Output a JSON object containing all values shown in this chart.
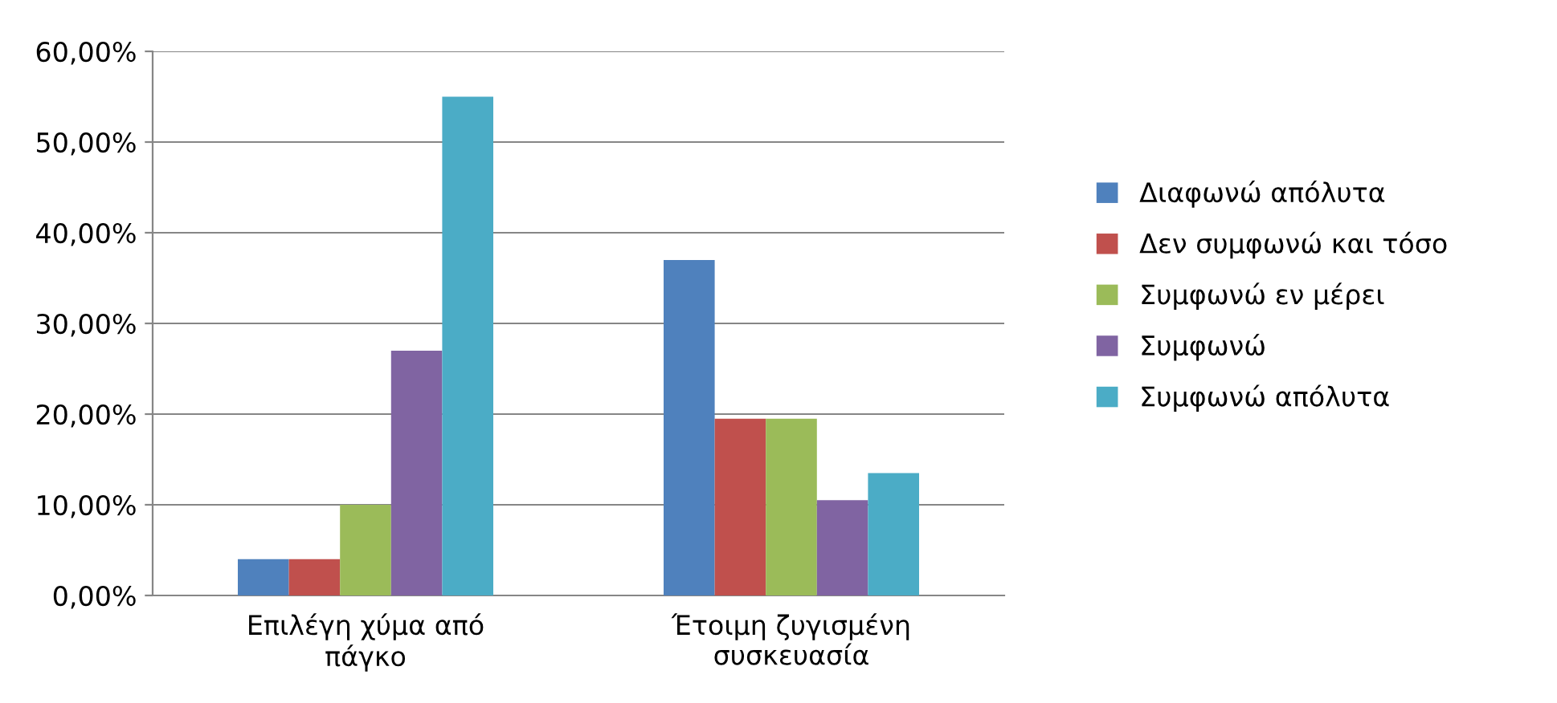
{
  "chart_data": {
    "type": "bar",
    "categories": [
      "Επιλέγη χύμα από\nπάγκο",
      "Έτοιμη ζυγισμένη\nσυσκευασία"
    ],
    "series": [
      {
        "name": "Διαφωνώ απόλυτα",
        "color": "#4f81bd",
        "values": [
          4,
          37
        ]
      },
      {
        "name": "Δεν συμφωνώ και τόσο",
        "color": "#c0504d",
        "values": [
          4,
          19.5
        ]
      },
      {
        "name": "Συμφωνώ εν μέρει",
        "color": "#9bbb59",
        "values": [
          10,
          19.5
        ]
      },
      {
        "name": "Συμφωνώ",
        "color": "#8064a2",
        "values": [
          27,
          10.5
        ]
      },
      {
        "name": "Συμφωνώ απόλυτα",
        "color": "#4bacc6",
        "values": [
          55,
          13.5
        ]
      }
    ],
    "ylim": [
      0,
      60
    ],
    "yticks": [
      {
        "value": 0,
        "label": "0,00%"
      },
      {
        "value": 10,
        "label": "10,00%"
      },
      {
        "value": 20,
        "label": "20,00%"
      },
      {
        "value": 30,
        "label": "30,00%"
      },
      {
        "value": 40,
        "label": "40,00%"
      },
      {
        "value": 50,
        "label": "50,00%"
      },
      {
        "value": 60,
        "label": "60,00%"
      }
    ],
    "grid": "y",
    "legend": "right"
  }
}
